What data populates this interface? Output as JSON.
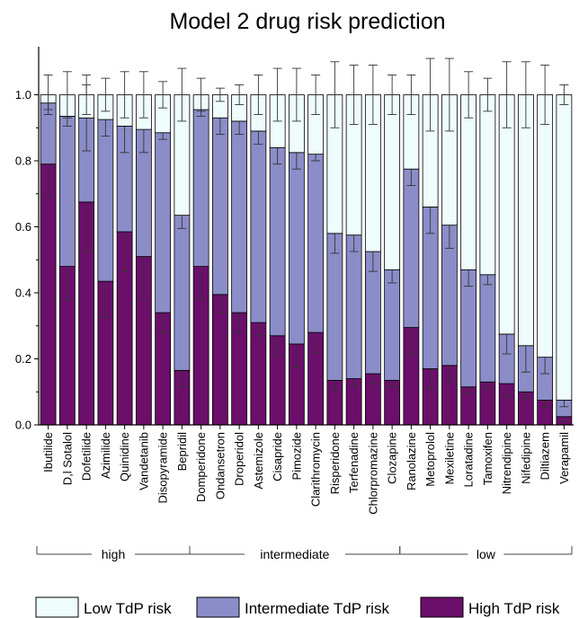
{
  "chart_data": {
    "type": "bar",
    "stacked": true,
    "title": "Model 2 drug risk prediction",
    "xlabel": "",
    "ylabel": "",
    "ylim": [
      0,
      1.15
    ],
    "yticks": [
      "0.0",
      "0.2",
      "0.4",
      "0.6",
      "0.8",
      "1.0"
    ],
    "grid": false,
    "legend_position": "bottom",
    "categories": [
      "Ibutilide",
      "D,l Sotalol",
      "Dofetilide",
      "Azimilide",
      "Quinidine",
      "Vandetanib",
      "Disopyramide",
      "Bepridil",
      "Domperidone",
      "Ondansetron",
      "Droperidol",
      "Astemizole",
      "Cisapride",
      "Pimozide",
      "Clarithromycin",
      "Risperidone",
      "Terfenadine",
      "Chlorpromazine",
      "Clozapine",
      "Ranolazine",
      "Metoprolol",
      "Mexiletine",
      "Loratadine",
      "Tamoxifen",
      "Nitrendipine",
      "Nifedipine",
      "Diltiazem",
      "Verapamil"
    ],
    "series": [
      {
        "name": "High TdP risk",
        "color": "#6b0f6b",
        "values": [
          0.79,
          0.48,
          0.675,
          0.435,
          0.585,
          0.51,
          0.34,
          0.165,
          0.48,
          0.395,
          0.34,
          0.31,
          0.27,
          0.245,
          0.28,
          0.135,
          0.14,
          0.155,
          0.135,
          0.295,
          0.17,
          0.18,
          0.115,
          0.13,
          0.125,
          0.1,
          0.075,
          0.025
        ],
        "error": [
          0.1,
          0.1,
          0.15,
          0.11,
          0.12,
          0.13,
          0.06,
          0.05,
          0.1,
          0.055,
          0.06,
          0.04,
          0.06,
          0.07,
          0.06,
          0.03,
          0.025,
          0.03,
          0.02,
          0.08,
          0.06,
          0.05,
          0.02,
          0.02,
          0.04,
          0.02,
          0.02,
          0.015
        ]
      },
      {
        "name": "Intermediate TdP risk",
        "color": "#8b8dc8",
        "values": [
          0.185,
          0.455,
          0.255,
          0.49,
          0.32,
          0.385,
          0.545,
          0.47,
          0.475,
          0.535,
          0.58,
          0.58,
          0.57,
          0.58,
          0.54,
          0.445,
          0.435,
          0.37,
          0.335,
          0.48,
          0.49,
          0.425,
          0.355,
          0.325,
          0.15,
          0.14,
          0.13,
          0.05
        ],
        "error": [
          0.02,
          0.03,
          0.1,
          0.05,
          0.08,
          0.07,
          0.02,
          0.04,
          0.02,
          0.05,
          0.04,
          0.04,
          0.05,
          0.05,
          0.02,
          0.06,
          0.05,
          0.06,
          0.04,
          0.05,
          0.08,
          0.07,
          0.05,
          0.03,
          0.06,
          0.08,
          0.05,
          0.02
        ]
      },
      {
        "name": "Low TdP risk",
        "color": "#eefcfc",
        "values": [
          0.025,
          0.065,
          0.07,
          0.075,
          0.095,
          0.105,
          0.115,
          0.365,
          0.045,
          0.07,
          0.08,
          0.11,
          0.16,
          0.175,
          0.18,
          0.42,
          0.425,
          0.475,
          0.53,
          0.225,
          0.34,
          0.395,
          0.53,
          0.545,
          0.725,
          0.76,
          0.795,
          0.925
        ],
        "error": [
          0.06,
          0.07,
          0.06,
          0.05,
          0.07,
          0.07,
          0.04,
          0.08,
          0.05,
          0.02,
          0.03,
          0.06,
          0.08,
          0.08,
          0.06,
          0.1,
          0.09,
          0.09,
          0.06,
          0.06,
          0.11,
          0.11,
          0.07,
          0.05,
          0.1,
          0.1,
          0.09,
          0.03
        ]
      }
    ],
    "groups": [
      {
        "label": "high",
        "start": 0,
        "end": 7
      },
      {
        "label": "intermediate",
        "start": 8,
        "end": 18
      },
      {
        "label": "low",
        "start": 19,
        "end": 27
      }
    ]
  }
}
